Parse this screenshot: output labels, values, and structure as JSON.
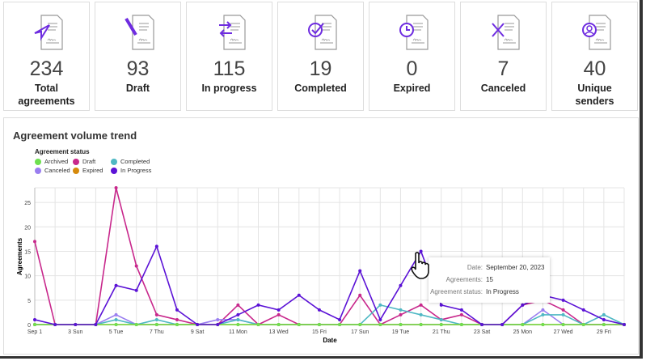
{
  "cards": [
    {
      "value": "234",
      "label": "Total agreements",
      "icon": "send-icon"
    },
    {
      "value": "93",
      "label": "Draft",
      "icon": "pencil-icon"
    },
    {
      "value": "115",
      "label": "In progress",
      "icon": "arrows-swap-icon"
    },
    {
      "value": "19",
      "label": "Completed",
      "icon": "check-circle-icon"
    },
    {
      "value": "0",
      "label": "Expired",
      "icon": "clock-icon"
    },
    {
      "value": "7",
      "label": "Canceled",
      "icon": "x-icon"
    },
    {
      "value": "40",
      "label": "Unique senders",
      "icon": "user-circle-icon"
    }
  ],
  "accent": "#6e2ce0",
  "chart_data": {
    "type": "line",
    "title": "Agreement volume trend",
    "legend_title": "Agreement status",
    "xlabel": "Date",
    "ylabel": "Agreements",
    "ylim": [
      0,
      28
    ],
    "yticks": [
      0,
      5,
      10,
      15,
      20,
      25
    ],
    "x": [
      1,
      2,
      3,
      4,
      5,
      6,
      7,
      8,
      9,
      10,
      11,
      12,
      13,
      14,
      15,
      16,
      17,
      18,
      19,
      20,
      21,
      22,
      23,
      24,
      25,
      26,
      27,
      28,
      29,
      30
    ],
    "xtick_labels": [
      "Sep 1",
      "3 Sun",
      "5 Tue",
      "7 Thu",
      "9 Sat",
      "11 Mon",
      "13 Wed",
      "15 Fri",
      "17 Sun",
      "19 Tue",
      "21 Thu",
      "23 Sat",
      "25 Mon",
      "27 Wed",
      "29 Fri"
    ],
    "series": [
      {
        "name": "Archived",
        "color": "#6ee04f",
        "values": [
          0,
          0,
          0,
          0,
          0,
          0,
          0,
          0,
          0,
          0,
          0,
          0,
          0,
          0,
          0,
          0,
          0,
          0,
          0,
          0,
          0,
          0,
          0,
          0,
          0,
          0,
          0,
          0,
          0,
          0
        ]
      },
      {
        "name": "Draft",
        "color": "#c8288c",
        "values": [
          17,
          0,
          0,
          0,
          28,
          12,
          2,
          1,
          0,
          0,
          4,
          0,
          2,
          0,
          0,
          0,
          6,
          0,
          2,
          4,
          1,
          2,
          0,
          0,
          4,
          5,
          3,
          0,
          0,
          0
        ]
      },
      {
        "name": "Completed",
        "color": "#4fb8c4",
        "values": [
          0,
          0,
          0,
          0,
          1,
          0,
          1,
          0,
          0,
          0,
          1,
          0,
          0,
          0,
          0,
          0,
          0,
          4,
          3,
          2,
          1,
          0,
          0,
          0,
          0,
          2,
          2,
          0,
          2,
          0
        ]
      },
      {
        "name": "Canceled",
        "color": "#9a7ef0",
        "values": [
          0,
          0,
          0,
          0,
          2,
          0,
          0,
          0,
          0,
          1,
          1,
          0,
          0,
          0,
          0,
          0,
          0,
          0,
          0,
          0,
          0,
          0,
          0,
          0,
          0,
          3,
          0,
          0,
          0,
          0
        ]
      },
      {
        "name": "Expired",
        "color": "#d68a0c",
        "values": [
          0,
          0,
          0,
          0,
          0,
          0,
          0,
          0,
          0,
          0,
          0,
          0,
          0,
          0,
          0,
          0,
          0,
          0,
          0,
          0,
          0,
          0,
          0,
          0,
          0,
          0,
          0,
          0,
          0,
          0
        ]
      },
      {
        "name": "In Progress",
        "color": "#5b12d6",
        "values": [
          1,
          0,
          0,
          0,
          8,
          7,
          16,
          3,
          0,
          0,
          2,
          4,
          3,
          6,
          3,
          1,
          11,
          1,
          8,
          15,
          4,
          3,
          0,
          0,
          4,
          6,
          5,
          3,
          1,
          0
        ]
      }
    ]
  },
  "tooltip": {
    "date_label": "Date:",
    "date": "September 20, 2023",
    "count_label": "Agreements:",
    "count": "15",
    "status_label": "Agreement status:",
    "status": "In Progress"
  }
}
